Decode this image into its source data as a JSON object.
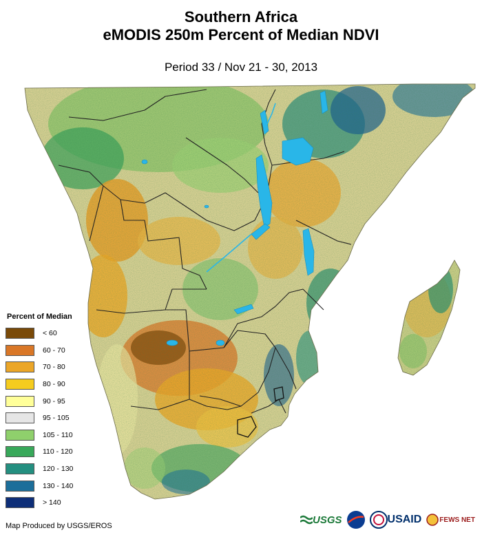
{
  "title_line1": "Southern Africa",
  "title_line2": "eMODIS 250m Percent of Median NDVI",
  "period": "Period 33 / Nov 21 - 30, 2013",
  "legend": {
    "title": "Percent of Median",
    "items": [
      {
        "label": "< 60",
        "color": "#7a4a08"
      },
      {
        "label": "60 - 70",
        "color": "#d97727"
      },
      {
        "label": "70 - 80",
        "color": "#eba628"
      },
      {
        "label": "80 - 90",
        "color": "#f5cc1f"
      },
      {
        "label": "90 - 95",
        "color": "#ffff99"
      },
      {
        "label": "95 - 105",
        "color": "#e6e6e6"
      },
      {
        "label": "105 - 110",
        "color": "#8fd06c"
      },
      {
        "label": "110 - 120",
        "color": "#38a85a"
      },
      {
        "label": "120 - 130",
        "color": "#248f80"
      },
      {
        "label": "130 - 140",
        "color": "#1c6e9a"
      },
      {
        "label": "> 140",
        "color": "#0e2e78"
      }
    ]
  },
  "credit": "Map Produced by USGS/EROS",
  "logos": {
    "usgs": "USGS",
    "nasa": "NASA",
    "usaid": "USAID",
    "fews": "FEWS NET"
  },
  "colors": {
    "water": "#29b6e8",
    "border": "#3a3a3a",
    "land_base": "#d8c98a"
  }
}
